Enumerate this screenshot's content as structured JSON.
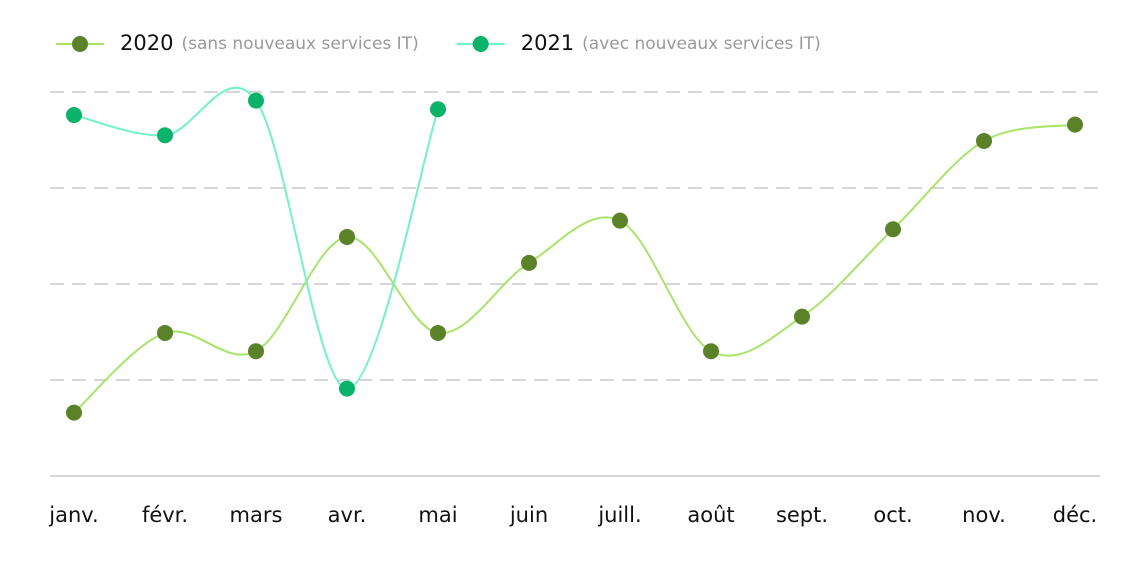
{
  "chart_data": {
    "type": "line",
    "categories": [
      "janv.",
      "févr.",
      "mars",
      "avr.",
      "mai",
      "juin",
      "juill.",
      "août",
      "sept.",
      "oct.",
      "nov.",
      "déc."
    ],
    "series": [
      {
        "name": "2020",
        "legend_detail": "(sans nouveaux services IT)",
        "color": "#a8e46c",
        "marker_color": "#5b8229",
        "values": [
          0.66,
          1.49,
          1.3,
          2.49,
          1.49,
          2.22,
          2.66,
          1.3,
          1.66,
          2.57,
          3.49,
          3.66
        ]
      },
      {
        "name": "2021",
        "legend_detail": "(avec nouveaux services IT)",
        "color": "#72f2c6",
        "marker_color": "#0bb26a",
        "values": [
          3.76,
          3.55,
          3.91,
          0.91,
          3.82,
          null,
          null,
          null,
          null,
          null,
          null,
          null
        ]
      }
    ],
    "ylim": [
      0,
      4
    ],
    "yticks": [
      1,
      2,
      3,
      4
    ],
    "grid": true
  }
}
